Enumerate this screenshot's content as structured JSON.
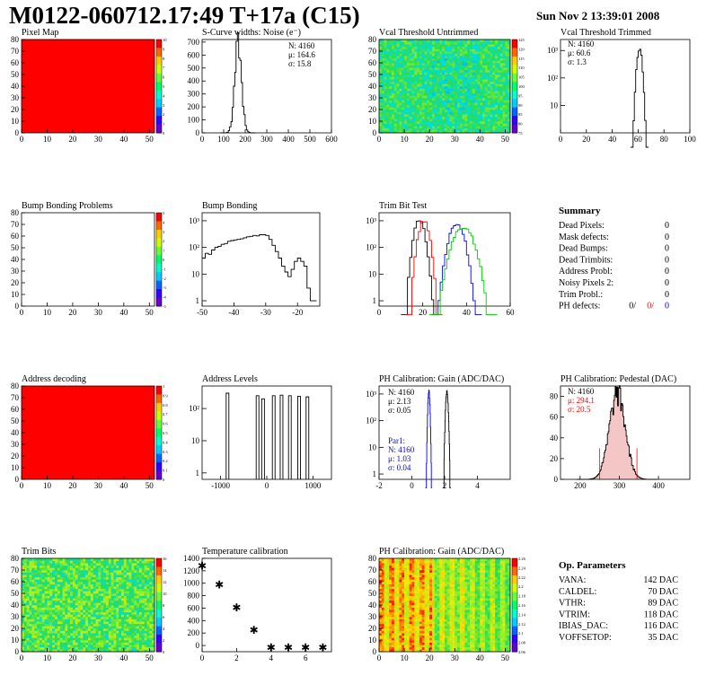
{
  "header": {
    "title": "M0122-060712.17:49 T+17a (C15)",
    "date": "Sun Nov  2 13:39:01 2008"
  },
  "colors": {
    "red_map": "#ff0000",
    "axis": "#000000",
    "series_red": "#ff0000",
    "series_blue": "#0000ff",
    "series_green": "#00cc00"
  },
  "chart_data": [
    {
      "id": "pixel-map",
      "type": "heatmap",
      "title": "Pixel Map",
      "x": {
        "ticks": [
          0,
          10,
          20,
          30,
          40,
          50
        ],
        "range": [
          0,
          52
        ]
      },
      "y": {
        "ticks": [
          0,
          10,
          20,
          30,
          40,
          50,
          60,
          70,
          80
        ],
        "range": [
          0,
          80
        ]
      },
      "fill": "uniform",
      "fill_color": "#ff0000",
      "palette": {
        "ticks": [
          "10",
          "9",
          "8",
          "7",
          "6",
          "5",
          "4",
          "3",
          "2",
          "1",
          "0"
        ]
      }
    },
    {
      "id": "scurve-noise",
      "type": "line",
      "title": "S-Curve widths: Noise (e⁻)",
      "x": {
        "ticks": [
          0,
          100,
          200,
          300,
          400,
          500,
          600
        ],
        "range": [
          0,
          600
        ]
      },
      "y": {
        "ticks": [
          0,
          100,
          200,
          300,
          400,
          500,
          600,
          700
        ],
        "range": [
          0,
          720
        ]
      },
      "stats": [
        "N: 4160",
        "μ: 164.6",
        "σ: 15.8"
      ],
      "gauss": {
        "mean": 164.6,
        "sigma": 15.8,
        "peak": 690
      }
    },
    {
      "id": "vcal-untrimmed",
      "type": "heatmap",
      "title": "Vcal Threshold Untrimmed",
      "x": {
        "ticks": [
          0,
          10,
          20,
          30,
          40,
          50
        ],
        "range": [
          0,
          52
        ]
      },
      "y": {
        "ticks": [
          0,
          10,
          20,
          30,
          40,
          50,
          60,
          70,
          80
        ],
        "range": [
          0,
          80
        ]
      },
      "fill": "noisy-green",
      "palette": {
        "ticks": [
          "125",
          "120",
          "115",
          "110",
          "105",
          "100",
          "95",
          "90",
          "85",
          "80",
          "75"
        ]
      }
    },
    {
      "id": "vcal-trimmed",
      "type": "line",
      "log": true,
      "title": "Vcal Threshold Trimmed",
      "x": {
        "ticks": [
          0,
          20,
          40,
          60,
          80,
          100
        ],
        "range": [
          0,
          100
        ]
      },
      "y": {
        "ticks": [
          "10",
          "10²",
          "10³"
        ],
        "decades": [
          1,
          2,
          3
        ],
        "range": [
          0,
          3.4
        ]
      },
      "stats": [
        "N: 4160",
        "μ: 60.6",
        "σ: 1.3"
      ],
      "gauss": {
        "mean": 60.6,
        "sigma": 1.3,
        "peak": 1200
      }
    },
    {
      "id": "bump-problems",
      "type": "heatmap",
      "title": "Bump Bonding Problems",
      "x": {
        "ticks": [
          0,
          10,
          20,
          30,
          40,
          50
        ],
        "range": [
          0,
          52
        ]
      },
      "y": {
        "ticks": [
          0,
          10,
          20,
          30,
          40,
          50,
          60,
          70,
          80
        ],
        "range": [
          0,
          80
        ]
      },
      "fill": "empty",
      "palette": {
        "ticks": [
          "5",
          "4",
          "3",
          "2",
          "1",
          "0",
          "-1",
          "-2",
          "-3",
          "-4",
          "-5"
        ]
      }
    },
    {
      "id": "bump-bonding",
      "type": "line",
      "log": true,
      "title": "Bump Bonding",
      "x": {
        "ticks": [
          -50,
          -40,
          -30,
          -20
        ],
        "range": [
          -50,
          -13
        ]
      },
      "y": {
        "ticks": [
          "1",
          "10",
          "10²",
          "10³"
        ],
        "decades": [
          0,
          1,
          2,
          3
        ],
        "range": [
          -0.2,
          3.3
        ]
      },
      "points": [
        [
          -50,
          40
        ],
        [
          -49,
          60
        ],
        [
          -48,
          55
        ],
        [
          -47,
          80
        ],
        [
          -46,
          100
        ],
        [
          -45,
          110
        ],
        [
          -44,
          130
        ],
        [
          -43,
          140
        ],
        [
          -42,
          170
        ],
        [
          -41,
          180
        ],
        [
          -40,
          190
        ],
        [
          -39,
          200
        ],
        [
          -38,
          210
        ],
        [
          -37,
          230
        ],
        [
          -36,
          250
        ],
        [
          -35,
          260
        ],
        [
          -34,
          280
        ],
        [
          -33,
          270
        ],
        [
          -32,
          300
        ],
        [
          -31,
          300
        ],
        [
          -30,
          280
        ],
        [
          -29,
          200
        ],
        [
          -28,
          120
        ],
        [
          -27,
          70
        ],
        [
          -26,
          40
        ],
        [
          -25,
          20
        ],
        [
          -24,
          12
        ],
        [
          -23,
          8
        ],
        [
          -22,
          15
        ],
        [
          -21,
          30
        ],
        [
          -20,
          40
        ],
        [
          -19,
          30
        ],
        [
          -18,
          20
        ],
        [
          -17,
          3
        ],
        [
          -16,
          1
        ],
        [
          -15,
          1
        ]
      ]
    },
    {
      "id": "trim-bit-test",
      "type": "line",
      "log": true,
      "title": "Trim Bit Test",
      "x": {
        "ticks": [
          0,
          20,
          40,
          60
        ],
        "range": [
          0,
          60
        ]
      },
      "y": {
        "ticks": [
          "1",
          "10",
          "10²",
          "10³"
        ],
        "decades": [
          0,
          1,
          2,
          3
        ],
        "range": [
          -0.2,
          3.3
        ]
      },
      "series": [
        {
          "color": "#000000",
          "mean": 18,
          "sigma": 1.6,
          "peak": 1100
        },
        {
          "color": "#ff0000",
          "mean": 20,
          "sigma": 1.6,
          "peak": 1000
        },
        {
          "color": "#0000ff",
          "mean": 35,
          "sigma": 2.2,
          "peak": 800
        },
        {
          "color": "#00cc00",
          "mean": 38,
          "sigma": 3.0,
          "peak": 600
        }
      ]
    },
    {
      "id": "summary",
      "type": "table",
      "title": "Summary",
      "rows": [
        [
          "Dead Pixels:",
          "0"
        ],
        [
          "Mask defects:",
          "0"
        ],
        [
          "Dead Bumps:",
          "0"
        ],
        [
          "Dead Trimbits:",
          "0"
        ],
        [
          "Address Probl:",
          "0"
        ],
        [
          "Noisy Pixels 2:",
          "0"
        ],
        [
          "Trim Probl.:",
          "0"
        ]
      ],
      "ph_defects": {
        "label": "PH defects:",
        "values": [
          "0/",
          "0/",
          "0"
        ]
      }
    },
    {
      "id": "address-decoding",
      "type": "heatmap",
      "title": "Address decoding",
      "x": {
        "ticks": [
          0,
          10,
          20,
          30,
          40,
          50
        ],
        "range": [
          0,
          52
        ]
      },
      "y": {
        "ticks": [
          0,
          10,
          20,
          30,
          40,
          50,
          60,
          70,
          80
        ],
        "range": [
          0,
          80
        ]
      },
      "fill": "uniform",
      "fill_color": "#ff0000",
      "palette": {
        "ticks": [
          "1",
          "0.9",
          "0.8",
          "0.7",
          "0.6",
          "0.5",
          "0.4",
          "0.3",
          "0.2",
          "0.1",
          "0"
        ]
      }
    },
    {
      "id": "address-levels",
      "type": "line",
      "log": true,
      "title": "Address Levels",
      "x": {
        "ticks": [
          -1000,
          0,
          1000
        ],
        "range": [
          -1400,
          1400
        ]
      },
      "y": {
        "ticks": [
          "1",
          "10",
          "10²"
        ],
        "decades": [
          0,
          1,
          2
        ],
        "range": [
          -0.2,
          2.7
        ]
      },
      "spikes": [
        [
          -850,
          300
        ],
        [
          -200,
          250
        ],
        [
          -80,
          200
        ],
        [
          150,
          250
        ],
        [
          320,
          260
        ],
        [
          500,
          250
        ],
        [
          700,
          240
        ],
        [
          880,
          230
        ]
      ]
    },
    {
      "id": "ph-gain",
      "type": "line",
      "log": true,
      "title": "PH Calibration: Gain (ADC/DAC)",
      "x": {
        "ticks": [
          -2,
          0,
          2,
          4
        ],
        "range": [
          -2,
          6
        ]
      },
      "y": {
        "ticks": [
          "1",
          "10",
          "10²",
          "10³"
        ],
        "decades": [
          0,
          1,
          2,
          3
        ],
        "range": [
          -0.2,
          3.3
        ]
      },
      "stats": [
        "N: 4160",
        "μ: 2.13",
        "σ: 0.05"
      ],
      "stats2": [
        "Par1:",
        "N: 4160",
        "μ: 1.03",
        "σ: 0.04"
      ],
      "series": [
        {
          "color": "#000000",
          "mean": 2.13,
          "sigma": 0.05,
          "peak": 1200
        },
        {
          "color": "#0000ff",
          "mean": 1.03,
          "sigma": 0.04,
          "peak": 1300
        }
      ]
    },
    {
      "id": "ph-pedestal",
      "type": "line",
      "title": "PH Calibration: Pedestal (DAC)",
      "x": {
        "ticks": [
          200,
          300,
          400
        ],
        "range": [
          150,
          480
        ]
      },
      "y": {
        "ticks": [
          0,
          20,
          40,
          60,
          80
        ],
        "range": [
          0,
          90
        ]
      },
      "stats": [
        "N: 4160",
        "μ: 294.1",
        "σ: 20.5"
      ],
      "gauss": {
        "mean": 294.1,
        "sigma": 20.5,
        "peak": 82
      },
      "fit_lines": [
        250,
        345
      ]
    },
    {
      "id": "trim-bits",
      "type": "heatmap",
      "title": "Trim Bits",
      "x": {
        "ticks": [
          0,
          10,
          20,
          30,
          40,
          50
        ],
        "range": [
          0,
          52
        ]
      },
      "y": {
        "ticks": [
          0,
          10,
          20,
          30,
          40,
          50,
          60,
          70,
          80
        ],
        "range": [
          0,
          80
        ]
      },
      "fill": "noisy-green-yellow",
      "palette": {
        "ticks": [
          "16",
          "14",
          "12",
          "10",
          "8",
          "6",
          "4",
          "2",
          "0"
        ]
      }
    },
    {
      "id": "temperature-calibration",
      "type": "scatter",
      "title": "Temperature calibration",
      "x": {
        "ticks": [
          0,
          2,
          4,
          6
        ],
        "range": [
          0,
          7.5
        ]
      },
      "y": {
        "ticks": [
          0,
          200,
          400,
          600,
          800,
          1000,
          1200,
          1400
        ],
        "range": [
          -100,
          1400
        ]
      },
      "points": [
        [
          0,
          1290
        ],
        [
          1,
          990
        ],
        [
          2,
          620
        ],
        [
          3,
          260
        ],
        [
          4,
          -20
        ],
        [
          5,
          -20
        ],
        [
          6,
          -20
        ],
        [
          7,
          -20
        ]
      ]
    },
    {
      "id": "ph-gain-map",
      "type": "heatmap",
      "title": "PH Calibration: Gain (ADC/DAC)",
      "x": {
        "ticks": [
          0,
          10,
          20,
          30,
          40,
          50
        ],
        "range": [
          0,
          52
        ]
      },
      "y": {
        "ticks": [
          0,
          10,
          20,
          30,
          40,
          50,
          60,
          70,
          80
        ],
        "range": [
          0,
          80
        ]
      },
      "fill": "column-stripes",
      "palette": {
        "ticks": [
          "2.26",
          "2.24",
          "2.22",
          "2.2",
          "2.18",
          "2.16",
          "2.14",
          "2.12",
          "2.1",
          "2.08",
          "2.06"
        ]
      }
    },
    {
      "id": "op-parameters",
      "type": "table",
      "title": "Op. Parameters",
      "rows": [
        [
          "VANA:",
          "142 DAC"
        ],
        [
          "CALDEL:",
          "70 DAC"
        ],
        [
          "VTHR:",
          "89 DAC"
        ],
        [
          "VTRIM:",
          "118 DAC"
        ],
        [
          "IBIAS_DAC:",
          "116 DAC"
        ],
        [
          "VOFFSETOP:",
          "35 DAC"
        ]
      ]
    }
  ]
}
